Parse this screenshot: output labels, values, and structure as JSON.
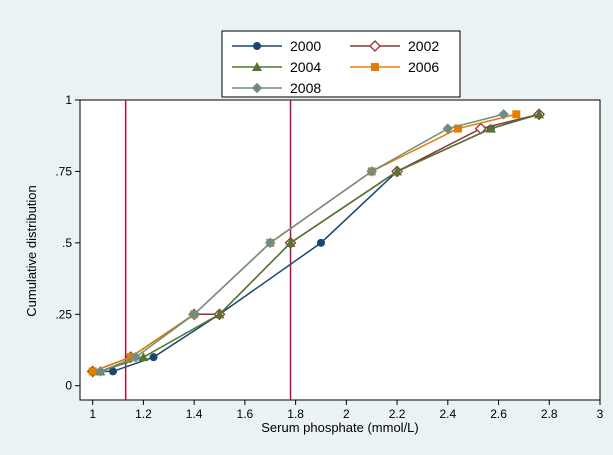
{
  "chart_data": {
    "type": "line",
    "title": "",
    "xlabel": "Serum phosphate (mmol/L)",
    "ylabel": "Cumulative distribution",
    "xlim": [
      0.95,
      3.0
    ],
    "ylim": [
      -0.05,
      1.0
    ],
    "x_ticks": [
      1,
      1.2,
      1.4,
      1.6,
      1.8,
      2,
      2.2,
      2.4,
      2.6,
      2.8,
      3
    ],
    "x_tick_labels": [
      "1",
      "1.2",
      "1.4",
      "1.6",
      "1.8",
      "2",
      "2.2",
      "2.4",
      "2.6",
      "2.8",
      "3"
    ],
    "y_ticks": [
      0,
      0.25,
      0.5,
      0.75,
      1
    ],
    "y_tick_labels": [
      "0",
      ".25",
      ".5",
      ".75",
      "1"
    ],
    "grid": false,
    "legend_position": "top",
    "reference_lines": {
      "x": [
        1.13,
        1.78
      ],
      "color": "#b0103a"
    },
    "series": [
      {
        "name": "2000",
        "color": "#1a476f",
        "marker": "circle",
        "points": [
          [
            1.0,
            0.05
          ],
          [
            1.08,
            0.05
          ],
          [
            1.24,
            0.1
          ],
          [
            1.5,
            0.25
          ],
          [
            1.9,
            0.5
          ],
          [
            2.2,
            0.75
          ],
          [
            2.57,
            0.9
          ],
          [
            2.76,
            0.95
          ]
        ]
      },
      {
        "name": "2002",
        "color": "#90353b",
        "marker": "diamond-hollow",
        "points": [
          [
            1.0,
            0.05
          ],
          [
            1.15,
            0.1
          ],
          [
            1.4,
            0.25
          ],
          [
            1.5,
            0.25
          ],
          [
            1.78,
            0.5
          ],
          [
            2.2,
            0.75
          ],
          [
            2.53,
            0.9
          ],
          [
            2.76,
            0.95
          ]
        ]
      },
      {
        "name": "2004",
        "color": "#55752f",
        "marker": "triangle",
        "points": [
          [
            1.03,
            0.05
          ],
          [
            1.2,
            0.1
          ],
          [
            1.5,
            0.25
          ],
          [
            1.78,
            0.5
          ],
          [
            2.2,
            0.75
          ],
          [
            2.57,
            0.9
          ],
          [
            2.76,
            0.95
          ]
        ]
      },
      {
        "name": "2006",
        "color": "#e37e00",
        "marker": "square",
        "points": [
          [
            1.0,
            0.05
          ],
          [
            1.15,
            0.1
          ],
          [
            1.4,
            0.25
          ],
          [
            1.7,
            0.5
          ],
          [
            2.1,
            0.75
          ],
          [
            2.44,
            0.9
          ],
          [
            2.67,
            0.95
          ]
        ]
      },
      {
        "name": "2008",
        "color": "#6e8e84",
        "marker": "diamond",
        "points": [
          [
            1.03,
            0.05
          ],
          [
            1.17,
            0.1
          ],
          [
            1.4,
            0.25
          ],
          [
            1.7,
            0.5
          ],
          [
            2.1,
            0.75
          ],
          [
            2.4,
            0.9
          ],
          [
            2.62,
            0.95
          ]
        ]
      }
    ]
  }
}
